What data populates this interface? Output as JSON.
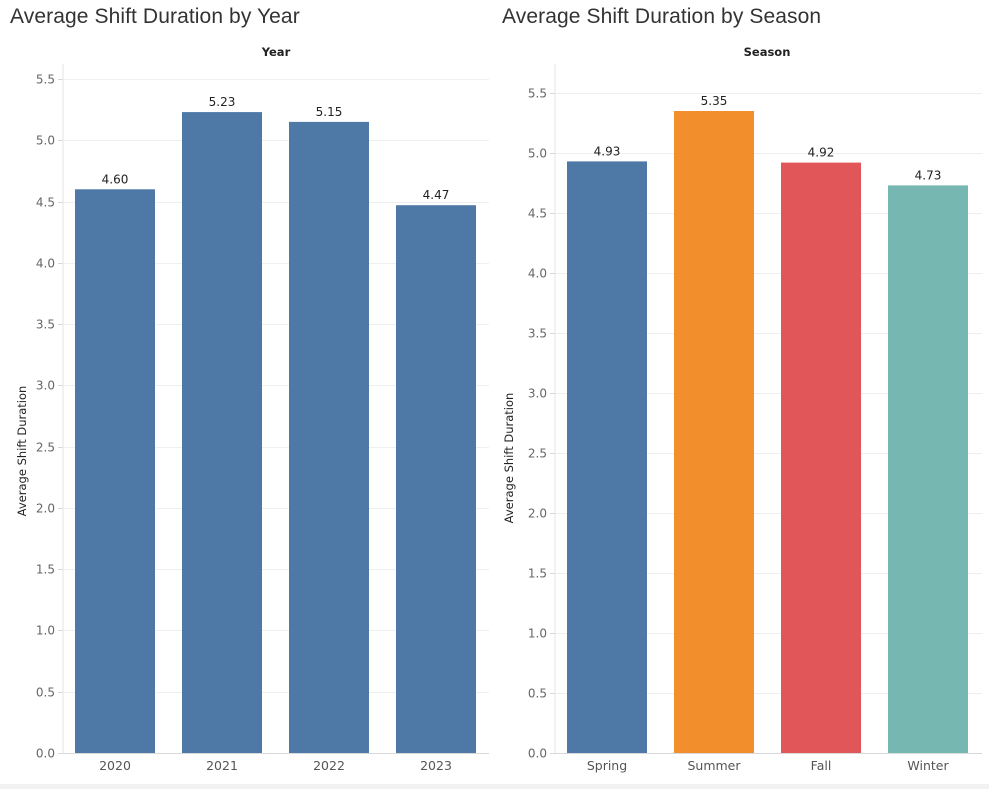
{
  "chart_data": [
    {
      "type": "bar",
      "title": "Average Shift Duration by Year",
      "header": "Year",
      "ylabel": "Average Shift Duration",
      "categories": [
        "2020",
        "2021",
        "2022",
        "2023"
      ],
      "values": [
        4.6,
        5.23,
        5.15,
        4.47
      ],
      "data_labels": [
        "4.60",
        "5.23",
        "5.15",
        "4.47"
      ],
      "ylim": [
        0,
        5.5
      ],
      "y_ticks": [
        "0.0",
        "0.5",
        "1.0",
        "1.5",
        "2.0",
        "2.5",
        "3.0",
        "3.5",
        "4.0",
        "4.5",
        "5.0",
        "5.5"
      ],
      "colors": [
        "#4e79a7",
        "#4e79a7",
        "#4e79a7",
        "#4e79a7"
      ],
      "grid": true,
      "legend": "none"
    },
    {
      "type": "bar",
      "title": "Average Shift Duration by Season",
      "header": "Season",
      "ylabel": "Average Shift Duration",
      "categories": [
        "Spring",
        "Summer",
        "Fall",
        "Winter"
      ],
      "values": [
        4.93,
        5.35,
        4.92,
        4.73
      ],
      "data_labels": [
        "4.93",
        "5.35",
        "4.92",
        "4.73"
      ],
      "ylim": [
        0,
        5.5
      ],
      "y_ticks": [
        "0.0",
        "0.5",
        "1.0",
        "1.5",
        "2.0",
        "2.5",
        "3.0",
        "3.5",
        "4.0",
        "4.5",
        "5.0",
        "5.5"
      ],
      "colors": [
        "#4e79a7",
        "#f28e2b",
        "#e15759",
        "#76b7b2"
      ],
      "grid": true,
      "legend": "none"
    }
  ]
}
